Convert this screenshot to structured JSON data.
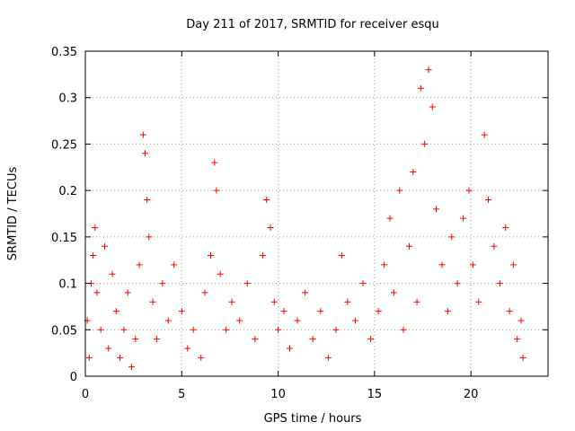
{
  "chart_data": {
    "type": "scatter",
    "title": "Day 211 of 2017, SRMTID for receiver esqu",
    "xlabel": "GPS time / hours",
    "ylabel": "SRMTID / TECUs",
    "xlim": [
      0,
      24
    ],
    "ylim": [
      0,
      0.35
    ],
    "grid": true,
    "marker": "+",
    "marker_color": "#ff0000",
    "x_ticks": [
      0,
      5,
      10,
      15,
      20
    ],
    "x_tick_labels": [
      "0",
      "5",
      "10",
      "15",
      "20"
    ],
    "y_ticks": [
      0,
      0.05,
      0.1,
      0.15,
      0.2,
      0.25,
      0.3,
      0.35
    ],
    "y_tick_labels": [
      "0",
      "0.05",
      "0.1",
      "0.15",
      "0.2",
      "0.25",
      "0.3",
      "0.35"
    ],
    "series": [
      {
        "name": "SRMTID",
        "points": [
          [
            0.1,
            0.06
          ],
          [
            0.2,
            0.02
          ],
          [
            0.3,
            0.1
          ],
          [
            0.4,
            0.13
          ],
          [
            0.5,
            0.16
          ],
          [
            0.6,
            0.09
          ],
          [
            0.8,
            0.05
          ],
          [
            1.0,
            0.14
          ],
          [
            1.2,
            0.03
          ],
          [
            1.4,
            0.11
          ],
          [
            1.6,
            0.07
          ],
          [
            1.8,
            0.02
          ],
          [
            2.0,
            0.05
          ],
          [
            2.2,
            0.09
          ],
          [
            2.4,
            0.01
          ],
          [
            2.6,
            0.04
          ],
          [
            2.8,
            0.12
          ],
          [
            3.0,
            0.26
          ],
          [
            3.1,
            0.24
          ],
          [
            3.2,
            0.19
          ],
          [
            3.3,
            0.15
          ],
          [
            3.5,
            0.08
          ],
          [
            3.7,
            0.04
          ],
          [
            4.0,
            0.1
          ],
          [
            4.3,
            0.06
          ],
          [
            4.6,
            0.12
          ],
          [
            5.0,
            0.07
          ],
          [
            5.3,
            0.03
          ],
          [
            5.6,
            0.05
          ],
          [
            6.0,
            0.02
          ],
          [
            6.2,
            0.09
          ],
          [
            6.5,
            0.13
          ],
          [
            6.7,
            0.23
          ],
          [
            6.8,
            0.2
          ],
          [
            7.0,
            0.11
          ],
          [
            7.3,
            0.05
          ],
          [
            7.6,
            0.08
          ],
          [
            8.0,
            0.06
          ],
          [
            8.4,
            0.1
          ],
          [
            8.8,
            0.04
          ],
          [
            9.2,
            0.13
          ],
          [
            9.4,
            0.19
          ],
          [
            9.6,
            0.16
          ],
          [
            9.8,
            0.08
          ],
          [
            10.0,
            0.05
          ],
          [
            10.3,
            0.07
          ],
          [
            10.6,
            0.03
          ],
          [
            11.0,
            0.06
          ],
          [
            11.4,
            0.09
          ],
          [
            11.8,
            0.04
          ],
          [
            12.2,
            0.07
          ],
          [
            12.6,
            0.02
          ],
          [
            13.0,
            0.05
          ],
          [
            13.3,
            0.13
          ],
          [
            13.6,
            0.08
          ],
          [
            14.0,
            0.06
          ],
          [
            14.4,
            0.1
          ],
          [
            14.8,
            0.04
          ],
          [
            15.2,
            0.07
          ],
          [
            15.5,
            0.12
          ],
          [
            15.8,
            0.17
          ],
          [
            16.0,
            0.09
          ],
          [
            16.3,
            0.2
          ],
          [
            16.5,
            0.05
          ],
          [
            16.8,
            0.14
          ],
          [
            17.0,
            0.22
          ],
          [
            17.2,
            0.08
          ],
          [
            17.4,
            0.31
          ],
          [
            17.6,
            0.25
          ],
          [
            17.8,
            0.33
          ],
          [
            18.0,
            0.29
          ],
          [
            18.2,
            0.18
          ],
          [
            18.5,
            0.12
          ],
          [
            18.8,
            0.07
          ],
          [
            19.0,
            0.15
          ],
          [
            19.3,
            0.1
          ],
          [
            19.6,
            0.17
          ],
          [
            19.9,
            0.2
          ],
          [
            20.1,
            0.12
          ],
          [
            20.4,
            0.08
          ],
          [
            20.7,
            0.26
          ],
          [
            20.9,
            0.19
          ],
          [
            21.2,
            0.14
          ],
          [
            21.5,
            0.1
          ],
          [
            21.8,
            0.16
          ],
          [
            22.0,
            0.07
          ],
          [
            22.2,
            0.12
          ],
          [
            22.4,
            0.04
          ],
          [
            22.6,
            0.06
          ],
          [
            22.7,
            0.02
          ]
        ]
      }
    ]
  }
}
